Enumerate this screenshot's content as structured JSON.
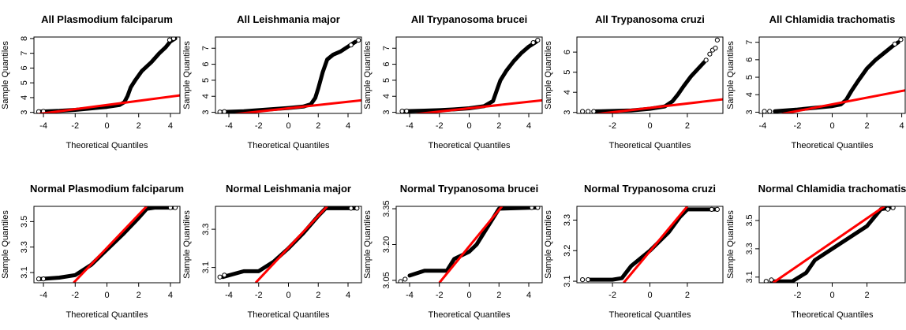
{
  "chart_data": [
    {
      "type": "scatter",
      "kind": "qq-plot",
      "title": "All Plasmodium falciparum",
      "xlabel": "Theoretical Quantiles",
      "ylabel": "Sample Quantiles",
      "xlim": [
        -4.6,
        4.6
      ],
      "ylim": [
        2.93,
        8.1
      ],
      "xticks": [
        -4,
        -2,
        0,
        2,
        4
      ],
      "yticks": [
        3,
        4,
        5,
        6,
        7,
        8
      ],
      "curve": [
        [
          -4.3,
          3.05
        ],
        [
          -3,
          3.1
        ],
        [
          -2,
          3.17
        ],
        [
          -1,
          3.27
        ],
        [
          0,
          3.37
        ],
        [
          0.8,
          3.5
        ],
        [
          1.1,
          3.7
        ],
        [
          1.3,
          4.1
        ],
        [
          1.5,
          4.7
        ],
        [
          1.8,
          5.2
        ],
        [
          2.2,
          5.8
        ],
        [
          2.8,
          6.4
        ],
        [
          3.3,
          7.0
        ],
        [
          3.7,
          7.4
        ],
        [
          4.0,
          7.8
        ],
        [
          4.3,
          8.0
        ]
      ],
      "open_points": [
        [
          -4.3,
          3.05
        ],
        [
          -4.0,
          3.07
        ],
        [
          3.95,
          7.9
        ],
        [
          4.2,
          8.0
        ]
      ],
      "fit_line": [
        [
          -4.6,
          2.85
        ],
        [
          4.6,
          4.15
        ]
      ],
      "line_color": "#ff0000"
    },
    {
      "type": "scatter",
      "kind": "qq-plot",
      "title": "All Leishmania major",
      "xlabel": "Theoretical Quantiles",
      "ylabel": "Sample Quantiles",
      "xlim": [
        -4.9,
        4.9
      ],
      "ylim": [
        2.93,
        7.7
      ],
      "xticks": [
        -4,
        -2,
        0,
        2,
        4
      ],
      "yticks": [
        3,
        4,
        5,
        6,
        7
      ],
      "curve": [
        [
          -4.5,
          3.02
        ],
        [
          -3,
          3.07
        ],
        [
          -2,
          3.13
        ],
        [
          -1,
          3.2
        ],
        [
          0,
          3.27
        ],
        [
          1,
          3.36
        ],
        [
          1.5,
          3.5
        ],
        [
          1.8,
          3.9
        ],
        [
          2.0,
          4.5
        ],
        [
          2.3,
          5.5
        ],
        [
          2.6,
          6.3
        ],
        [
          3.0,
          6.6
        ],
        [
          3.5,
          6.8
        ],
        [
          4.0,
          7.1
        ],
        [
          4.5,
          7.4
        ]
      ],
      "open_points": [
        [
          -4.6,
          3.02
        ],
        [
          -4.3,
          3.04
        ],
        [
          4.2,
          7.2
        ],
        [
          4.7,
          7.5
        ]
      ],
      "fit_line": [
        [
          -4.9,
          2.75
        ],
        [
          4.9,
          3.75
        ]
      ],
      "line_color": "#ff0000"
    },
    {
      "type": "scatter",
      "kind": "qq-plot",
      "title": "All Trypanosoma brucei",
      "xlabel": "Theoretical Quantiles",
      "ylabel": "Sample Quantiles",
      "xlim": [
        -4.9,
        4.9
      ],
      "ylim": [
        2.93,
        7.7
      ],
      "xticks": [
        -4,
        -2,
        0,
        2,
        4
      ],
      "yticks": [
        3,
        4,
        5,
        6,
        7
      ],
      "curve": [
        [
          -4.4,
          3.07
        ],
        [
          -3,
          3.1
        ],
        [
          -2,
          3.13
        ],
        [
          -1,
          3.18
        ],
        [
          0,
          3.25
        ],
        [
          1,
          3.38
        ],
        [
          1.6,
          3.7
        ],
        [
          1.9,
          4.5
        ],
        [
          2.1,
          5.0
        ],
        [
          2.5,
          5.6
        ],
        [
          3,
          6.2
        ],
        [
          3.5,
          6.7
        ],
        [
          4,
          7.1
        ],
        [
          4.5,
          7.4
        ]
      ],
      "open_points": [
        [
          -4.5,
          3.07
        ],
        [
          -4.2,
          3.08
        ],
        [
          4.3,
          7.35
        ],
        [
          4.6,
          7.5
        ]
      ],
      "fit_line": [
        [
          -4.9,
          2.75
        ],
        [
          4.9,
          3.75
        ]
      ],
      "line_color": "#ff0000"
    },
    {
      "type": "scatter",
      "kind": "qq-plot",
      "title": "All Trypanosoma cruzi",
      "xlabel": "Theoretical Quantiles",
      "ylabel": "Sample Quantiles",
      "xlim": [
        -3.9,
        3.9
      ],
      "ylim": [
        2.95,
        6.75
      ],
      "xticks": [
        -2,
        0,
        2
      ],
      "yticks": [
        3.0,
        4.0,
        5.0,
        6.0
      ],
      "curve": [
        [
          -2.9,
          3.05
        ],
        [
          -2,
          3.07
        ],
        [
          -1,
          3.1
        ],
        [
          0,
          3.18
        ],
        [
          0.8,
          3.3
        ],
        [
          1.2,
          3.55
        ],
        [
          1.5,
          3.9
        ],
        [
          1.8,
          4.3
        ],
        [
          2.2,
          4.8
        ],
        [
          2.6,
          5.2
        ],
        [
          2.9,
          5.5
        ]
      ],
      "open_points": [
        [
          -3.6,
          3.05
        ],
        [
          -3.3,
          3.05
        ],
        [
          -3.0,
          3.05
        ],
        [
          3.0,
          5.6
        ],
        [
          3.2,
          5.9
        ],
        [
          3.35,
          6.1
        ],
        [
          3.5,
          6.2
        ],
        [
          3.6,
          6.6
        ]
      ],
      "fit_line": [
        [
          -3.9,
          2.8
        ],
        [
          3.9,
          3.65
        ]
      ],
      "line_color": "#ff0000"
    },
    {
      "type": "scatter",
      "kind": "qq-plot",
      "title": "All Chlamidia trachomatis",
      "xlabel": "Theoretical Quantiles",
      "ylabel": "Sample Quantiles",
      "xlim": [
        -4.2,
        4.2
      ],
      "ylim": [
        2.93,
        7.3
      ],
      "xticks": [
        -4,
        -2,
        0,
        2,
        4
      ],
      "yticks": [
        3,
        4,
        5,
        6,
        7
      ],
      "curve": [
        [
          -3.3,
          3.05
        ],
        [
          -2,
          3.15
        ],
        [
          -1,
          3.25
        ],
        [
          0,
          3.35
        ],
        [
          0.5,
          3.45
        ],
        [
          0.8,
          3.7
        ],
        [
          1.1,
          4.2
        ],
        [
          1.5,
          4.8
        ],
        [
          2,
          5.5
        ],
        [
          2.5,
          6.0
        ],
        [
          3,
          6.4
        ],
        [
          3.5,
          6.8
        ],
        [
          3.8,
          7.0
        ]
      ],
      "open_points": [
        [
          -3.9,
          3.05
        ],
        [
          -3.6,
          3.05
        ],
        [
          3.6,
          6.9
        ],
        [
          3.95,
          7.15
        ]
      ],
      "fit_line": [
        [
          -4.2,
          2.65
        ],
        [
          4.2,
          4.25
        ]
      ],
      "line_color": "#ff0000"
    },
    {
      "type": "scatter",
      "kind": "qq-plot",
      "title": "Normal Plasmodium falciparum",
      "xlabel": "Theoretical Quantiles",
      "ylabel": "Sample Quantiles",
      "xlim": [
        -4.6,
        4.6
      ],
      "ylim": [
        3.02,
        3.62
      ],
      "xticks": [
        -4,
        -2,
        0,
        2,
        4
      ],
      "yticks": [
        3.1,
        3.3,
        3.5
      ],
      "curve": [
        [
          -4.2,
          3.05
        ],
        [
          -3,
          3.06
        ],
        [
          -2,
          3.08
        ],
        [
          -1,
          3.16
        ],
        [
          0,
          3.28
        ],
        [
          1,
          3.4
        ],
        [
          2,
          3.53
        ],
        [
          2.5,
          3.6
        ],
        [
          3,
          3.61
        ],
        [
          4.2,
          3.61
        ]
      ],
      "open_points": [
        [
          -4.3,
          3.05
        ],
        [
          -4.0,
          3.05
        ],
        [
          4.0,
          3.61
        ],
        [
          4.3,
          3.61
        ]
      ],
      "fit_line": [
        [
          -2.1,
          3.02
        ],
        [
          2.5,
          3.62
        ]
      ],
      "line_color": "#ff0000"
    },
    {
      "type": "scatter",
      "kind": "qq-plot",
      "title": "Normal Leishmania major",
      "xlabel": "Theoretical Quantiles",
      "ylabel": "Sample Quantiles",
      "xlim": [
        -4.9,
        4.9
      ],
      "ylim": [
        3.02,
        3.42
      ],
      "xticks": [
        -4,
        -2,
        0,
        2,
        4
      ],
      "yticks": [
        3.1,
        3.3
      ],
      "curve": [
        [
          -4.4,
          3.05
        ],
        [
          -3,
          3.08
        ],
        [
          -2,
          3.08
        ],
        [
          -1,
          3.13
        ],
        [
          0,
          3.2
        ],
        [
          1,
          3.28
        ],
        [
          2,
          3.37
        ],
        [
          2.5,
          3.41
        ],
        [
          4.5,
          3.41
        ]
      ],
      "open_points": [
        [
          -4.6,
          3.05
        ],
        [
          -4.3,
          3.06
        ],
        [
          4.2,
          3.41
        ],
        [
          4.6,
          3.41
        ]
      ],
      "fit_line": [
        [
          -2.2,
          3.02
        ],
        [
          2.6,
          3.42
        ]
      ],
      "line_color": "#ff0000"
    },
    {
      "type": "scatter",
      "kind": "qq-plot",
      "title": "Normal Trypanosoma brucei",
      "xlabel": "Theoretical Quantiles",
      "ylabel": "Sample Quantiles",
      "xlim": [
        -4.9,
        4.9
      ],
      "ylim": [
        3.04,
        3.36
      ],
      "xticks": [
        -4,
        -2,
        0,
        2,
        4
      ],
      "yticks": [
        3.05,
        3.2,
        3.35
      ],
      "curve": [
        [
          -4.0,
          3.07
        ],
        [
          -3,
          3.09
        ],
        [
          -1.5,
          3.09
        ],
        [
          -1,
          3.14
        ],
        [
          0,
          3.17
        ],
        [
          0.5,
          3.2
        ],
        [
          1,
          3.25
        ],
        [
          1.5,
          3.3
        ],
        [
          2,
          3.35
        ],
        [
          4.5,
          3.355
        ]
      ],
      "open_points": [
        [
          -4.6,
          3.045
        ],
        [
          -4.3,
          3.055
        ],
        [
          4.2,
          3.355
        ],
        [
          4.6,
          3.355
        ]
      ],
      "fit_line": [
        [
          -2.0,
          3.04
        ],
        [
          2.2,
          3.36
        ]
      ],
      "line_color": "#ff0000"
    },
    {
      "type": "scatter",
      "kind": "qq-plot",
      "title": "Normal Trypanosoma cruzi",
      "xlabel": "Theoretical Quantiles",
      "ylabel": "Sample Quantiles",
      "xlim": [
        -3.9,
        3.9
      ],
      "ylim": [
        3.095,
        3.345
      ],
      "xticks": [
        -2,
        0,
        2
      ],
      "yticks": [
        3.1,
        3.2,
        3.3
      ],
      "curve": [
        [
          -3.2,
          3.105
        ],
        [
          -2,
          3.105
        ],
        [
          -1.5,
          3.11
        ],
        [
          -1,
          3.15
        ],
        [
          0,
          3.2
        ],
        [
          1,
          3.26
        ],
        [
          1.6,
          3.31
        ],
        [
          2,
          3.335
        ],
        [
          3.5,
          3.335
        ]
      ],
      "open_points": [
        [
          -3.6,
          3.105
        ],
        [
          -3.3,
          3.105
        ],
        [
          3.3,
          3.335
        ],
        [
          3.6,
          3.335
        ]
      ],
      "fit_line": [
        [
          -1.4,
          3.095
        ],
        [
          2.0,
          3.345
        ]
      ],
      "line_color": "#ff0000"
    },
    {
      "type": "scatter",
      "kind": "qq-plot",
      "title": "Normal Chlamidia trachomatis",
      "xlabel": "Theoretical Quantiles",
      "ylabel": "Sample Quantiles",
      "xlim": [
        -4.2,
        4.2
      ],
      "ylim": [
        3.06,
        3.6
      ],
      "xticks": [
        -2,
        0,
        2
      ],
      "yticks": [
        3.1,
        3.3,
        3.5
      ],
      "curve": [
        [
          -3.5,
          3.07
        ],
        [
          -2.3,
          3.07
        ],
        [
          -1.5,
          3.13
        ],
        [
          -1,
          3.22
        ],
        [
          0,
          3.3
        ],
        [
          1,
          3.38
        ],
        [
          2,
          3.46
        ],
        [
          2.8,
          3.58
        ],
        [
          3.3,
          3.59
        ]
      ],
      "open_points": [
        [
          -3.8,
          3.07
        ],
        [
          -3.5,
          3.08
        ],
        [
          3.2,
          3.58
        ],
        [
          3.5,
          3.59
        ]
      ],
      "fit_line": [
        [
          -3.4,
          3.06
        ],
        [
          3.0,
          3.6
        ]
      ],
      "line_color": "#ff0000"
    }
  ]
}
